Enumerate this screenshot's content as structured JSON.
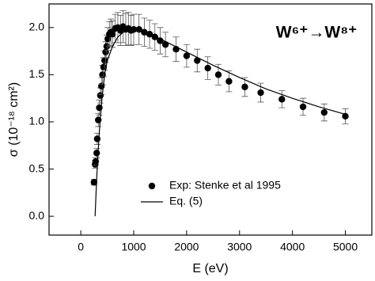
{
  "chart_data": {
    "type": "scatter",
    "ylabel": "σ (10⁻¹⁸ cm²)",
    "xlabel": "E (eV)",
    "annotation": "W⁶⁺→W⁸⁺",
    "xlim": [
      -600,
      5500
    ],
    "ylim": [
      -0.2,
      2.25
    ],
    "xticks": [
      0,
      1000,
      2000,
      3000,
      4000,
      5000
    ],
    "yticks": [
      {
        "value": 0,
        "label": "0.0"
      },
      0.5,
      {
        "value": 1,
        "label": "1.0"
      },
      1.5,
      {
        "value": 2,
        "label": "2.0"
      }
    ],
    "series": [
      {
        "name": "Exp: Stenke et al 1995",
        "type": "scatter",
        "color": "#000000",
        "x": [
          250,
          270,
          280,
          300,
          310,
          330,
          350,
          370,
          390,
          410,
          430,
          450,
          470,
          490,
          510,
          540,
          570,
          600,
          650,
          700,
          750,
          800,
          850,
          900,
          950,
          1000,
          1100,
          1200,
          1300,
          1400,
          1500,
          1600,
          1800,
          2000,
          2200,
          2400,
          2600,
          2800,
          3100,
          3400,
          3800,
          4200,
          4600,
          5000
        ],
        "values": [
          0.36,
          0.55,
          0.58,
          0.67,
          0.82,
          1.02,
          1.15,
          1.28,
          1.38,
          1.5,
          1.58,
          1.65,
          1.74,
          1.8,
          1.88,
          1.93,
          1.95,
          1.93,
          1.99,
          2.0,
          1.97,
          2.01,
          1.98,
          1.99,
          1.97,
          1.98,
          1.98,
          1.95,
          1.93,
          1.9,
          1.86,
          1.82,
          1.77,
          1.7,
          1.65,
          1.57,
          1.5,
          1.43,
          1.37,
          1.31,
          1.24,
          1.16,
          1.1,
          1.06
        ],
        "errors": [
          0.03,
          0.04,
          0.04,
          0.05,
          0.06,
          0.07,
          0.08,
          0.08,
          0.09,
          0.1,
          0.1,
          0.1,
          0.11,
          0.12,
          0.12,
          0.13,
          0.14,
          0.14,
          0.15,
          0.16,
          0.16,
          0.17,
          0.17,
          0.17,
          0.16,
          0.16,
          0.16,
          0.15,
          0.15,
          0.14,
          0.14,
          0.13,
          0.13,
          0.12,
          0.12,
          0.12,
          0.11,
          0.11,
          0.1,
          0.1,
          0.09,
          0.09,
          0.09,
          0.08
        ]
      },
      {
        "name": "Eq. (5)",
        "type": "line",
        "color": "#000000",
        "x": [
          270,
          300,
          350,
          400,
          450,
          500,
          600,
          700,
          800,
          900,
          1000,
          1200,
          1500,
          2000,
          2500,
          3000,
          3500,
          4000,
          4500,
          5000
        ],
        "values": [
          0,
          0.4,
          0.9,
          1.25,
          1.5,
          1.65,
          1.8,
          1.9,
          1.95,
          1.97,
          1.97,
          1.95,
          1.88,
          1.74,
          1.6,
          1.47,
          1.35,
          1.25,
          1.16,
          1.08
        ]
      }
    ]
  }
}
